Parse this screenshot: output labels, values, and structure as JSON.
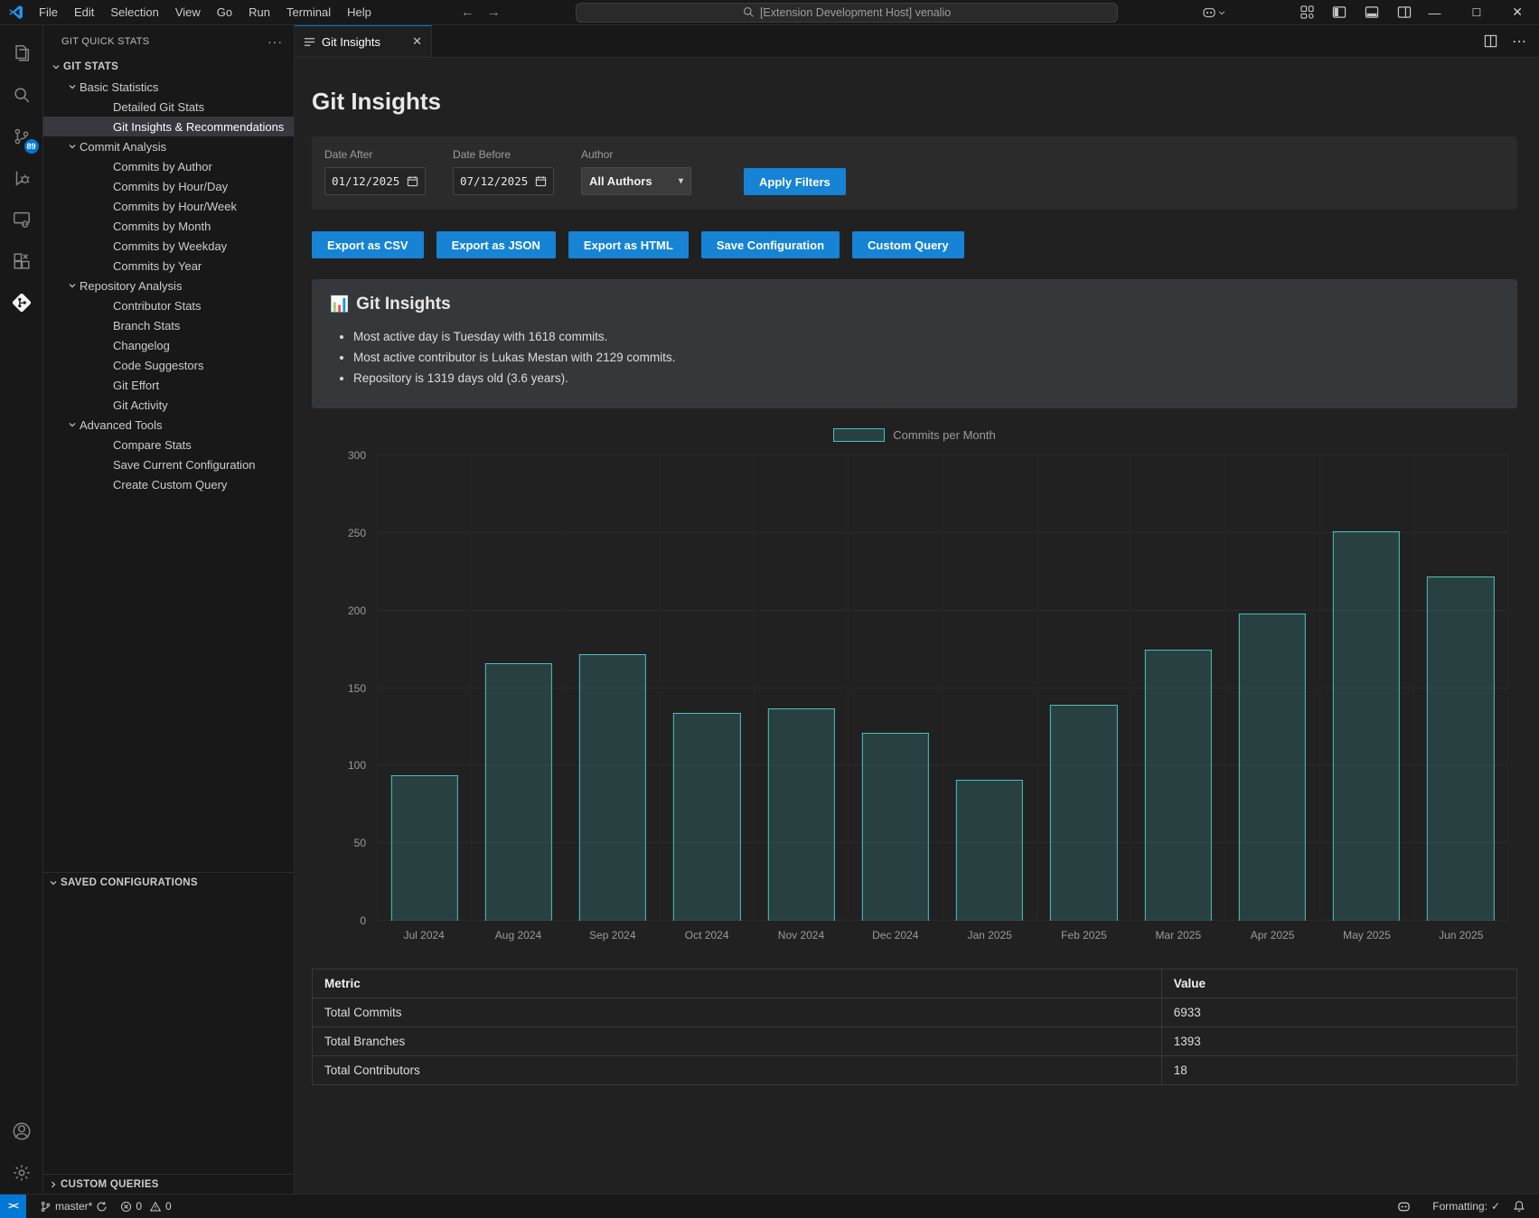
{
  "title_bar": {
    "menus": [
      "File",
      "Edit",
      "Selection",
      "View",
      "Go",
      "Run",
      "Terminal",
      "Help"
    ],
    "back_arrow": "←",
    "forward_arrow": "→",
    "search_text": "[Extension Development Host] venalio",
    "minimize": "—",
    "maximize": "☐",
    "close": "✕"
  },
  "activity_bar": {
    "source_control_badge": "89",
    "icons": [
      "explorer-icon",
      "search-icon",
      "source-control-icon",
      "run-debug-icon",
      "remote-explorer-icon",
      "extensions-icon",
      "git-quick-stats-icon",
      "account-icon",
      "settings-gear-icon"
    ]
  },
  "sidebar": {
    "title": "GIT QUICK STATS",
    "more": "···",
    "tree": [
      {
        "label": "GIT STATS",
        "level": 0,
        "chevron": "down",
        "bold": true
      },
      {
        "label": "Basic Statistics",
        "level": 1,
        "chevron": "down"
      },
      {
        "label": "Detailed Git Stats",
        "level": 2
      },
      {
        "label": "Git Insights & Recommendations",
        "level": 2,
        "selected": true
      },
      {
        "label": "Commit Analysis",
        "level": 1,
        "chevron": "down"
      },
      {
        "label": "Commits by Author",
        "level": 2
      },
      {
        "label": "Commits by Hour/Day",
        "level": 2
      },
      {
        "label": "Commits by Hour/Week",
        "level": 2
      },
      {
        "label": "Commits by Month",
        "level": 2
      },
      {
        "label": "Commits by Weekday",
        "level": 2
      },
      {
        "label": "Commits by Year",
        "level": 2
      },
      {
        "label": "Repository Analysis",
        "level": 1,
        "chevron": "down"
      },
      {
        "label": "Contributor Stats",
        "level": 2
      },
      {
        "label": "Branch Stats",
        "level": 2
      },
      {
        "label": "Changelog",
        "level": 2
      },
      {
        "label": "Code Suggestors",
        "level": 2
      },
      {
        "label": "Git Effort",
        "level": 2
      },
      {
        "label": "Git Activity",
        "level": 2
      },
      {
        "label": "Advanced Tools",
        "level": 1,
        "chevron": "down"
      },
      {
        "label": "Compare Stats",
        "level": 2
      },
      {
        "label": "Save Current Configuration",
        "level": 2
      },
      {
        "label": "Create Custom Query",
        "level": 2
      }
    ],
    "saved_configurations_label": "SAVED CONFIGURATIONS",
    "custom_queries_label": "CUSTOM QUERIES"
  },
  "editor": {
    "tab_label": "Git Insights",
    "tab_close": "✕",
    "actions_ellipsis": "⋯"
  },
  "page": {
    "title": "Git Insights",
    "filters": {
      "date_after_label": "Date After",
      "date_after_value": "01/12/2025",
      "date_before_label": "Date Before",
      "date_before_value": "07/12/2025",
      "author_label": "Author",
      "author_value": "All Authors",
      "apply_label": "Apply Filters"
    },
    "action_buttons": [
      "Export as CSV",
      "Export as JSON",
      "Export as HTML",
      "Save Configuration",
      "Custom Query"
    ],
    "insights": {
      "emoji": "📊",
      "title": "Git Insights",
      "bullets": [
        "Most active day is Tuesday with 1618 commits.",
        "Most active contributor is Lukas Mestan with 2129 commits.",
        "Repository is 1319 days old (3.6 years)."
      ]
    }
  },
  "chart_data": {
    "type": "bar",
    "legend": "Commits per Month",
    "legend_position": "top",
    "categories": [
      "Jul 2024",
      "Aug 2024",
      "Sep 2024",
      "Oct 2024",
      "Nov 2024",
      "Dec 2024",
      "Jan 2025",
      "Feb 2025",
      "Mar 2025",
      "Apr 2025",
      "May 2025",
      "Jun 2025"
    ],
    "values": [
      94,
      166,
      172,
      134,
      137,
      121,
      91,
      139,
      175,
      198,
      251,
      222
    ],
    "ylim": [
      0,
      300
    ],
    "yticks": [
      0,
      50,
      100,
      150,
      200,
      250,
      300
    ],
    "grid": true,
    "bar_fill": "rgba(75,192,192,0.2)",
    "bar_border": "#4bc0c0"
  },
  "table": {
    "headers": [
      "Metric",
      "Value"
    ],
    "rows": [
      [
        "Total Commits",
        "6933"
      ],
      [
        "Total Branches",
        "1393"
      ],
      [
        "Total Contributors",
        "18"
      ]
    ]
  },
  "status_bar": {
    "remote_glyph": "><",
    "branch_label": "master*",
    "errors": "0",
    "warnings": "0",
    "formatting_label": "Formatting:",
    "formatting_check": "✓"
  },
  "colors": {
    "accent_blue": "#1683d4",
    "badge_blue": "#0078d4",
    "teal_border": "#4bc0c0",
    "teal_fill": "rgba(75,192,192,0.2)"
  }
}
